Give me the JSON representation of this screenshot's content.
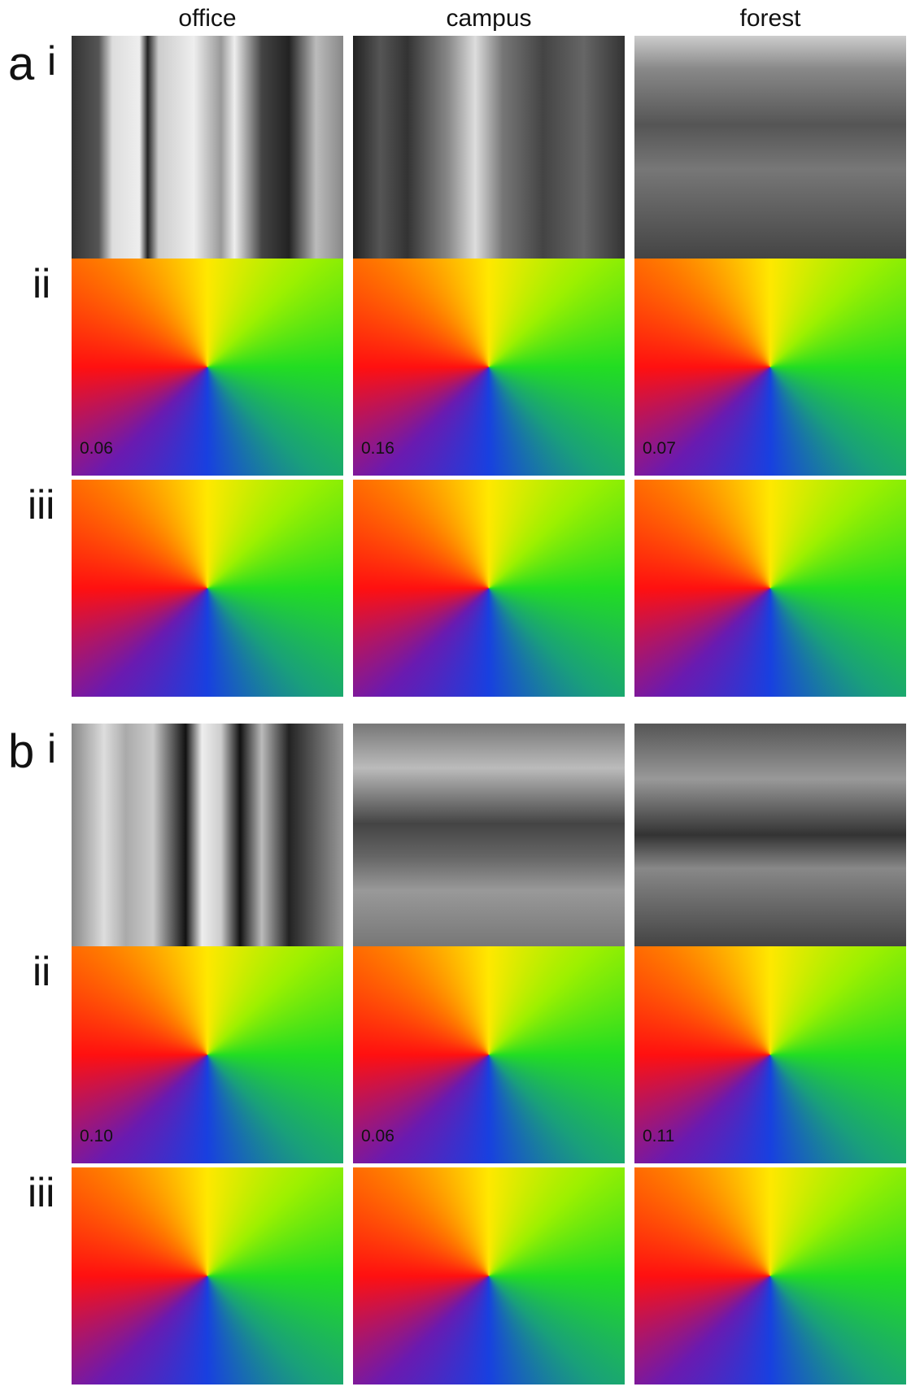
{
  "columns": [
    "office",
    "campus",
    "forest"
  ],
  "panels": [
    {
      "label": "a",
      "rows": [
        "i",
        "ii",
        "iii"
      ],
      "values": [
        "0.06",
        "0.16",
        "0.07"
      ]
    },
    {
      "label": "b",
      "rows": [
        "i",
        "ii",
        "iii"
      ],
      "values": [
        "0.10",
        "0.06",
        "0.11"
      ]
    }
  ]
}
